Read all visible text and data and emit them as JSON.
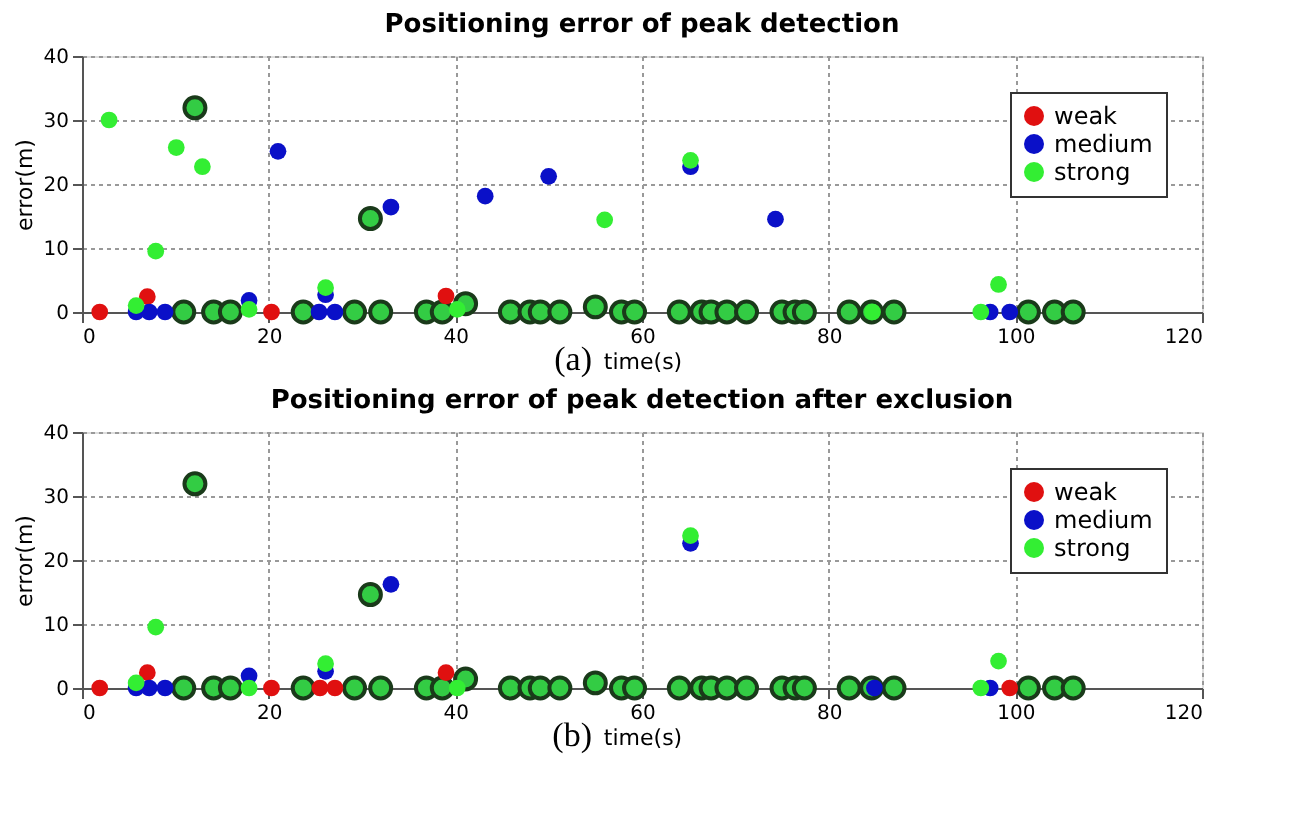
{
  "chart_data": [
    {
      "type": "scatter",
      "title": "Positioning error of peak detection",
      "xlabel": "time(s)",
      "ylabel": "error(m)",
      "annotations": [
        "(a)"
      ],
      "xlim": [
        0,
        120
      ],
      "xticks": [
        0,
        20,
        40,
        60,
        80,
        100,
        120
      ],
      "ylim": [
        0,
        40
      ],
      "yticks": [
        0,
        10,
        20,
        30,
        40
      ],
      "grid": true,
      "legend": "top right",
      "marker": "circle",
      "series": [
        {
          "color": "#33cc44",
          "x": [
            12.1,
            30.9,
            10.9,
            14.1,
            15.9,
            23.7,
            29.2,
            32,
            36.9,
            38.6,
            41.1,
            45.9,
            48,
            49.1,
            51.2,
            55,
            57.8,
            59.2,
            64,
            66.4,
            67.4,
            69.1,
            71.2,
            75,
            76.4,
            77.4,
            82.2,
            84.6,
            87,
            101.4,
            104.2,
            106.2
          ],
          "values": [
            31.9,
            14.6,
            0,
            0,
            0,
            0,
            0,
            0,
            0,
            0,
            1.3,
            0,
            0,
            0,
            0,
            0.8,
            0,
            0,
            0,
            0,
            0,
            0,
            0,
            0,
            0,
            0,
            0,
            0,
            0,
            0,
            0,
            0
          ]
        },
        {
          "name": "weak",
          "color": "#e01010",
          "x": [
            1.9,
            7,
            20.3,
            39
          ],
          "values": [
            0,
            2.4,
            0,
            2.5
          ]
        },
        {
          "name": "medium",
          "color": "#0a10c8",
          "x": [
            5.8,
            7.2,
            8.9,
            17.9,
            21,
            25.4,
            26.1,
            27.1,
            33.1,
            43.2,
            50,
            65.2,
            74.3,
            97.3,
            99.4
          ],
          "values": [
            0,
            0,
            0,
            1.8,
            25.1,
            0,
            2.7,
            0,
            16.4,
            18.1,
            21.2,
            22.7,
            14.5,
            0,
            0
          ]
        },
        {
          "name": "strong",
          "color": "#33ee33",
          "x": [
            2.9,
            10.1,
            12.9,
            7.9,
            56,
            5.8,
            17.9,
            26.1,
            40.2,
            65.2,
            98.2,
            96.3,
            84.7
          ],
          "values": [
            30,
            25.7,
            22.7,
            9.5,
            14.4,
            1,
            0.4,
            3.8,
            0.4,
            23.7,
            4.3,
            0,
            0
          ]
        }
      ]
    },
    {
      "type": "scatter",
      "title": "Positioning error of peak detection after exclusion",
      "xlabel": "time(s)",
      "ylabel": "error(m)",
      "annotations": [
        "(b)"
      ],
      "xlim": [
        0,
        120
      ],
      "xticks": [
        0,
        20,
        40,
        60,
        80,
        100,
        120
      ],
      "ylim": [
        0,
        40
      ],
      "yticks": [
        0,
        10,
        20,
        30,
        40
      ],
      "grid": true,
      "legend": "top right",
      "marker": "circle",
      "series": [
        {
          "color": "#33cc44",
          "x": [
            12.1,
            30.9,
            10.9,
            14.1,
            15.9,
            23.7,
            29.2,
            32,
            36.9,
            38.6,
            41.1,
            45.9,
            48,
            49.1,
            51.2,
            55,
            57.8,
            59.2,
            64,
            66.4,
            67.4,
            69.1,
            71.2,
            75,
            76.4,
            77.4,
            82.2,
            84.6,
            87,
            101.4,
            104.2,
            106.2
          ],
          "values": [
            31.9,
            14.6,
            0,
            0,
            0,
            0,
            0,
            0,
            0,
            0,
            1.4,
            0,
            0,
            0,
            0,
            0.8,
            0,
            0,
            0,
            0,
            0,
            0,
            0,
            0,
            0,
            0,
            0,
            0,
            0,
            0,
            0,
            0
          ]
        },
        {
          "name": "weak",
          "color": "#e01010",
          "x": [
            1.9,
            7,
            20.3,
            25.5,
            27.1,
            39,
            99.4
          ],
          "values": [
            0,
            2.4,
            0,
            0,
            0,
            2.4,
            0
          ]
        },
        {
          "name": "medium",
          "color": "#0a10c8",
          "x": [
            5.8,
            7.2,
            8.9,
            17.9,
            26.1,
            33.1,
            65.2,
            84.9,
            97.3
          ],
          "values": [
            0,
            0,
            0,
            1.9,
            2.6,
            16.2,
            22.6,
            0,
            0
          ]
        },
        {
          "name": "strong",
          "color": "#33ee33",
          "x": [
            7.9,
            5.8,
            17.9,
            26.1,
            40.2,
            65.2,
            98.2,
            96.3
          ],
          "values": [
            9.5,
            0.8,
            0,
            3.8,
            0,
            23.8,
            4.2,
            0
          ]
        }
      ]
    }
  ]
}
